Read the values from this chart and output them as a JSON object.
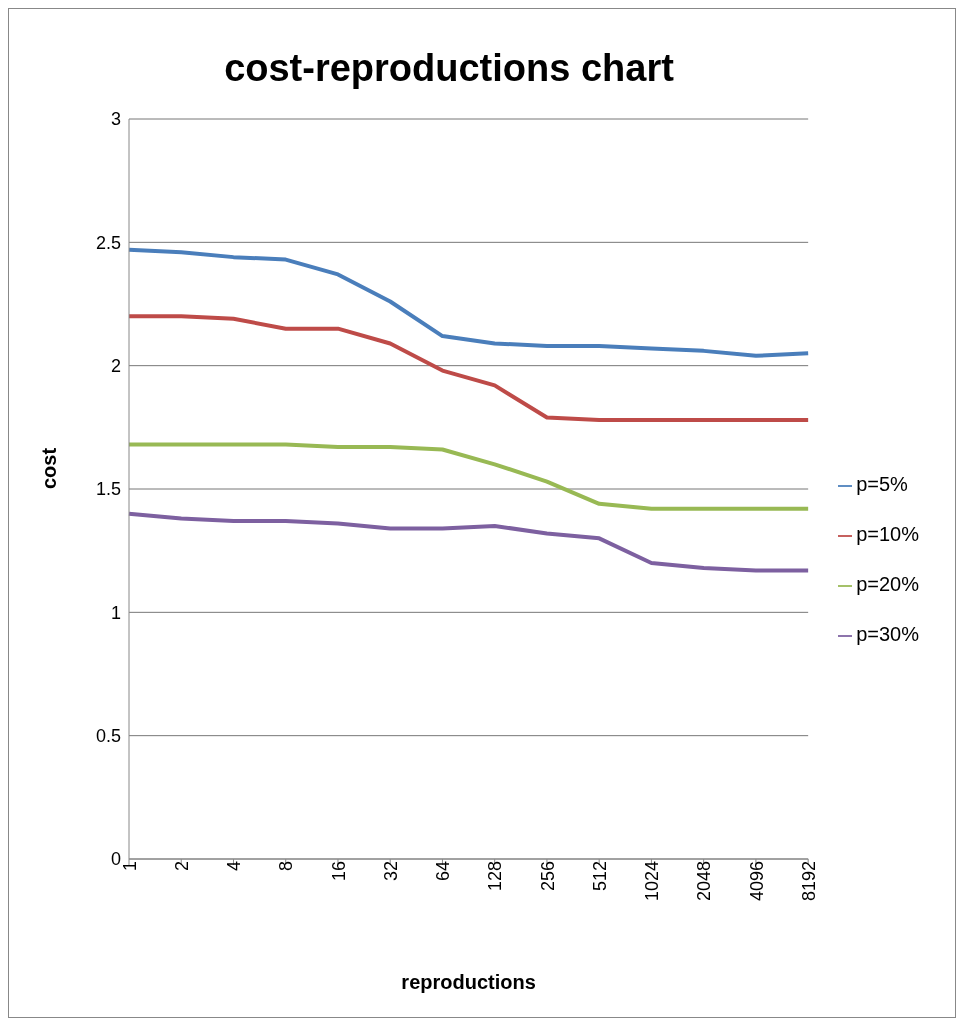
{
  "chart_data": {
    "type": "line",
    "title": "cost-reproductions chart",
    "xlabel": "reproductions",
    "ylabel": "cost",
    "categories": [
      "1",
      "2",
      "4",
      "8",
      "16",
      "32",
      "64",
      "128",
      "256",
      "512",
      "1024",
      "2048",
      "4096",
      "8192"
    ],
    "series": [
      {
        "name": "p=5%",
        "color": "#4a7ebb",
        "values": [
          2.47,
          2.46,
          2.44,
          2.43,
          2.37,
          2.26,
          2.12,
          2.09,
          2.08,
          2.08,
          2.07,
          2.06,
          2.04,
          2.05
        ]
      },
      {
        "name": "p=10%",
        "color": "#be4b48",
        "values": [
          2.2,
          2.2,
          2.19,
          2.15,
          2.15,
          2.09,
          1.98,
          1.92,
          1.79,
          1.78,
          1.78,
          1.78,
          1.78,
          1.78
        ]
      },
      {
        "name": "p=20%",
        "color": "#98b954",
        "values": [
          1.68,
          1.68,
          1.68,
          1.68,
          1.67,
          1.67,
          1.66,
          1.6,
          1.53,
          1.44,
          1.42,
          1.42,
          1.42,
          1.42
        ]
      },
      {
        "name": "p=30%",
        "color": "#7d60a0",
        "values": [
          1.4,
          1.38,
          1.37,
          1.37,
          1.36,
          1.34,
          1.34,
          1.35,
          1.32,
          1.3,
          1.2,
          1.18,
          1.17,
          1.17
        ]
      }
    ],
    "ylim": [
      0,
      3
    ],
    "yticks": [
      0,
      0.5,
      1,
      1.5,
      2,
      2.5,
      3
    ],
    "grid": "y",
    "legend": "right",
    "marker": "none",
    "line_style": "solid"
  }
}
